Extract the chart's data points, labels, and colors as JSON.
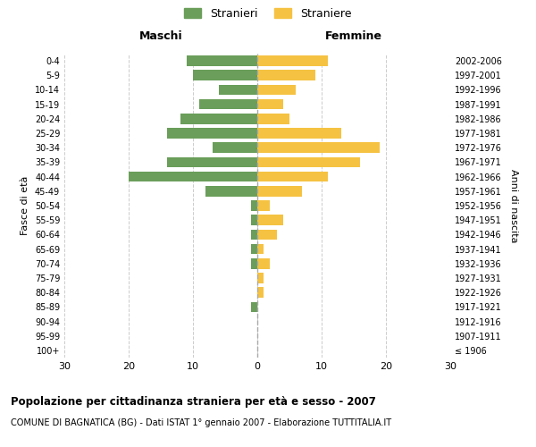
{
  "age_groups": [
    "100+",
    "95-99",
    "90-94",
    "85-89",
    "80-84",
    "75-79",
    "70-74",
    "65-69",
    "60-64",
    "55-59",
    "50-54",
    "45-49",
    "40-44",
    "35-39",
    "30-34",
    "25-29",
    "20-24",
    "15-19",
    "10-14",
    "5-9",
    "0-4"
  ],
  "birth_years": [
    "≤ 1906",
    "1907-1911",
    "1912-1916",
    "1917-1921",
    "1922-1926",
    "1927-1931",
    "1932-1936",
    "1937-1941",
    "1942-1946",
    "1947-1951",
    "1952-1956",
    "1957-1961",
    "1962-1966",
    "1967-1971",
    "1972-1976",
    "1977-1981",
    "1982-1986",
    "1987-1991",
    "1992-1996",
    "1997-2001",
    "2002-2006"
  ],
  "males": [
    0,
    0,
    0,
    1,
    0,
    0,
    1,
    1,
    1,
    1,
    1,
    8,
    20,
    14,
    7,
    14,
    12,
    9,
    6,
    10,
    11
  ],
  "females": [
    0,
    0,
    0,
    0,
    1,
    1,
    2,
    1,
    3,
    4,
    2,
    7,
    11,
    16,
    19,
    13,
    5,
    4,
    6,
    9,
    11
  ],
  "male_color": "#6a9e5a",
  "female_color": "#f5c242",
  "male_label": "Stranieri",
  "female_label": "Straniere",
  "xlim": 30,
  "title": "Popolazione per cittadinanza straniera per età e sesso - 2007",
  "subtitle": "COMUNE DI BAGNATICA (BG) - Dati ISTAT 1° gennaio 2007 - Elaborazione TUTTITALIA.IT",
  "xlabel_left": "Maschi",
  "xlabel_right": "Femmine",
  "ylabel_left": "Fasce di età",
  "ylabel_right": "Anni di nascita",
  "bg_color": "#ffffff",
  "grid_color": "#cccccc"
}
